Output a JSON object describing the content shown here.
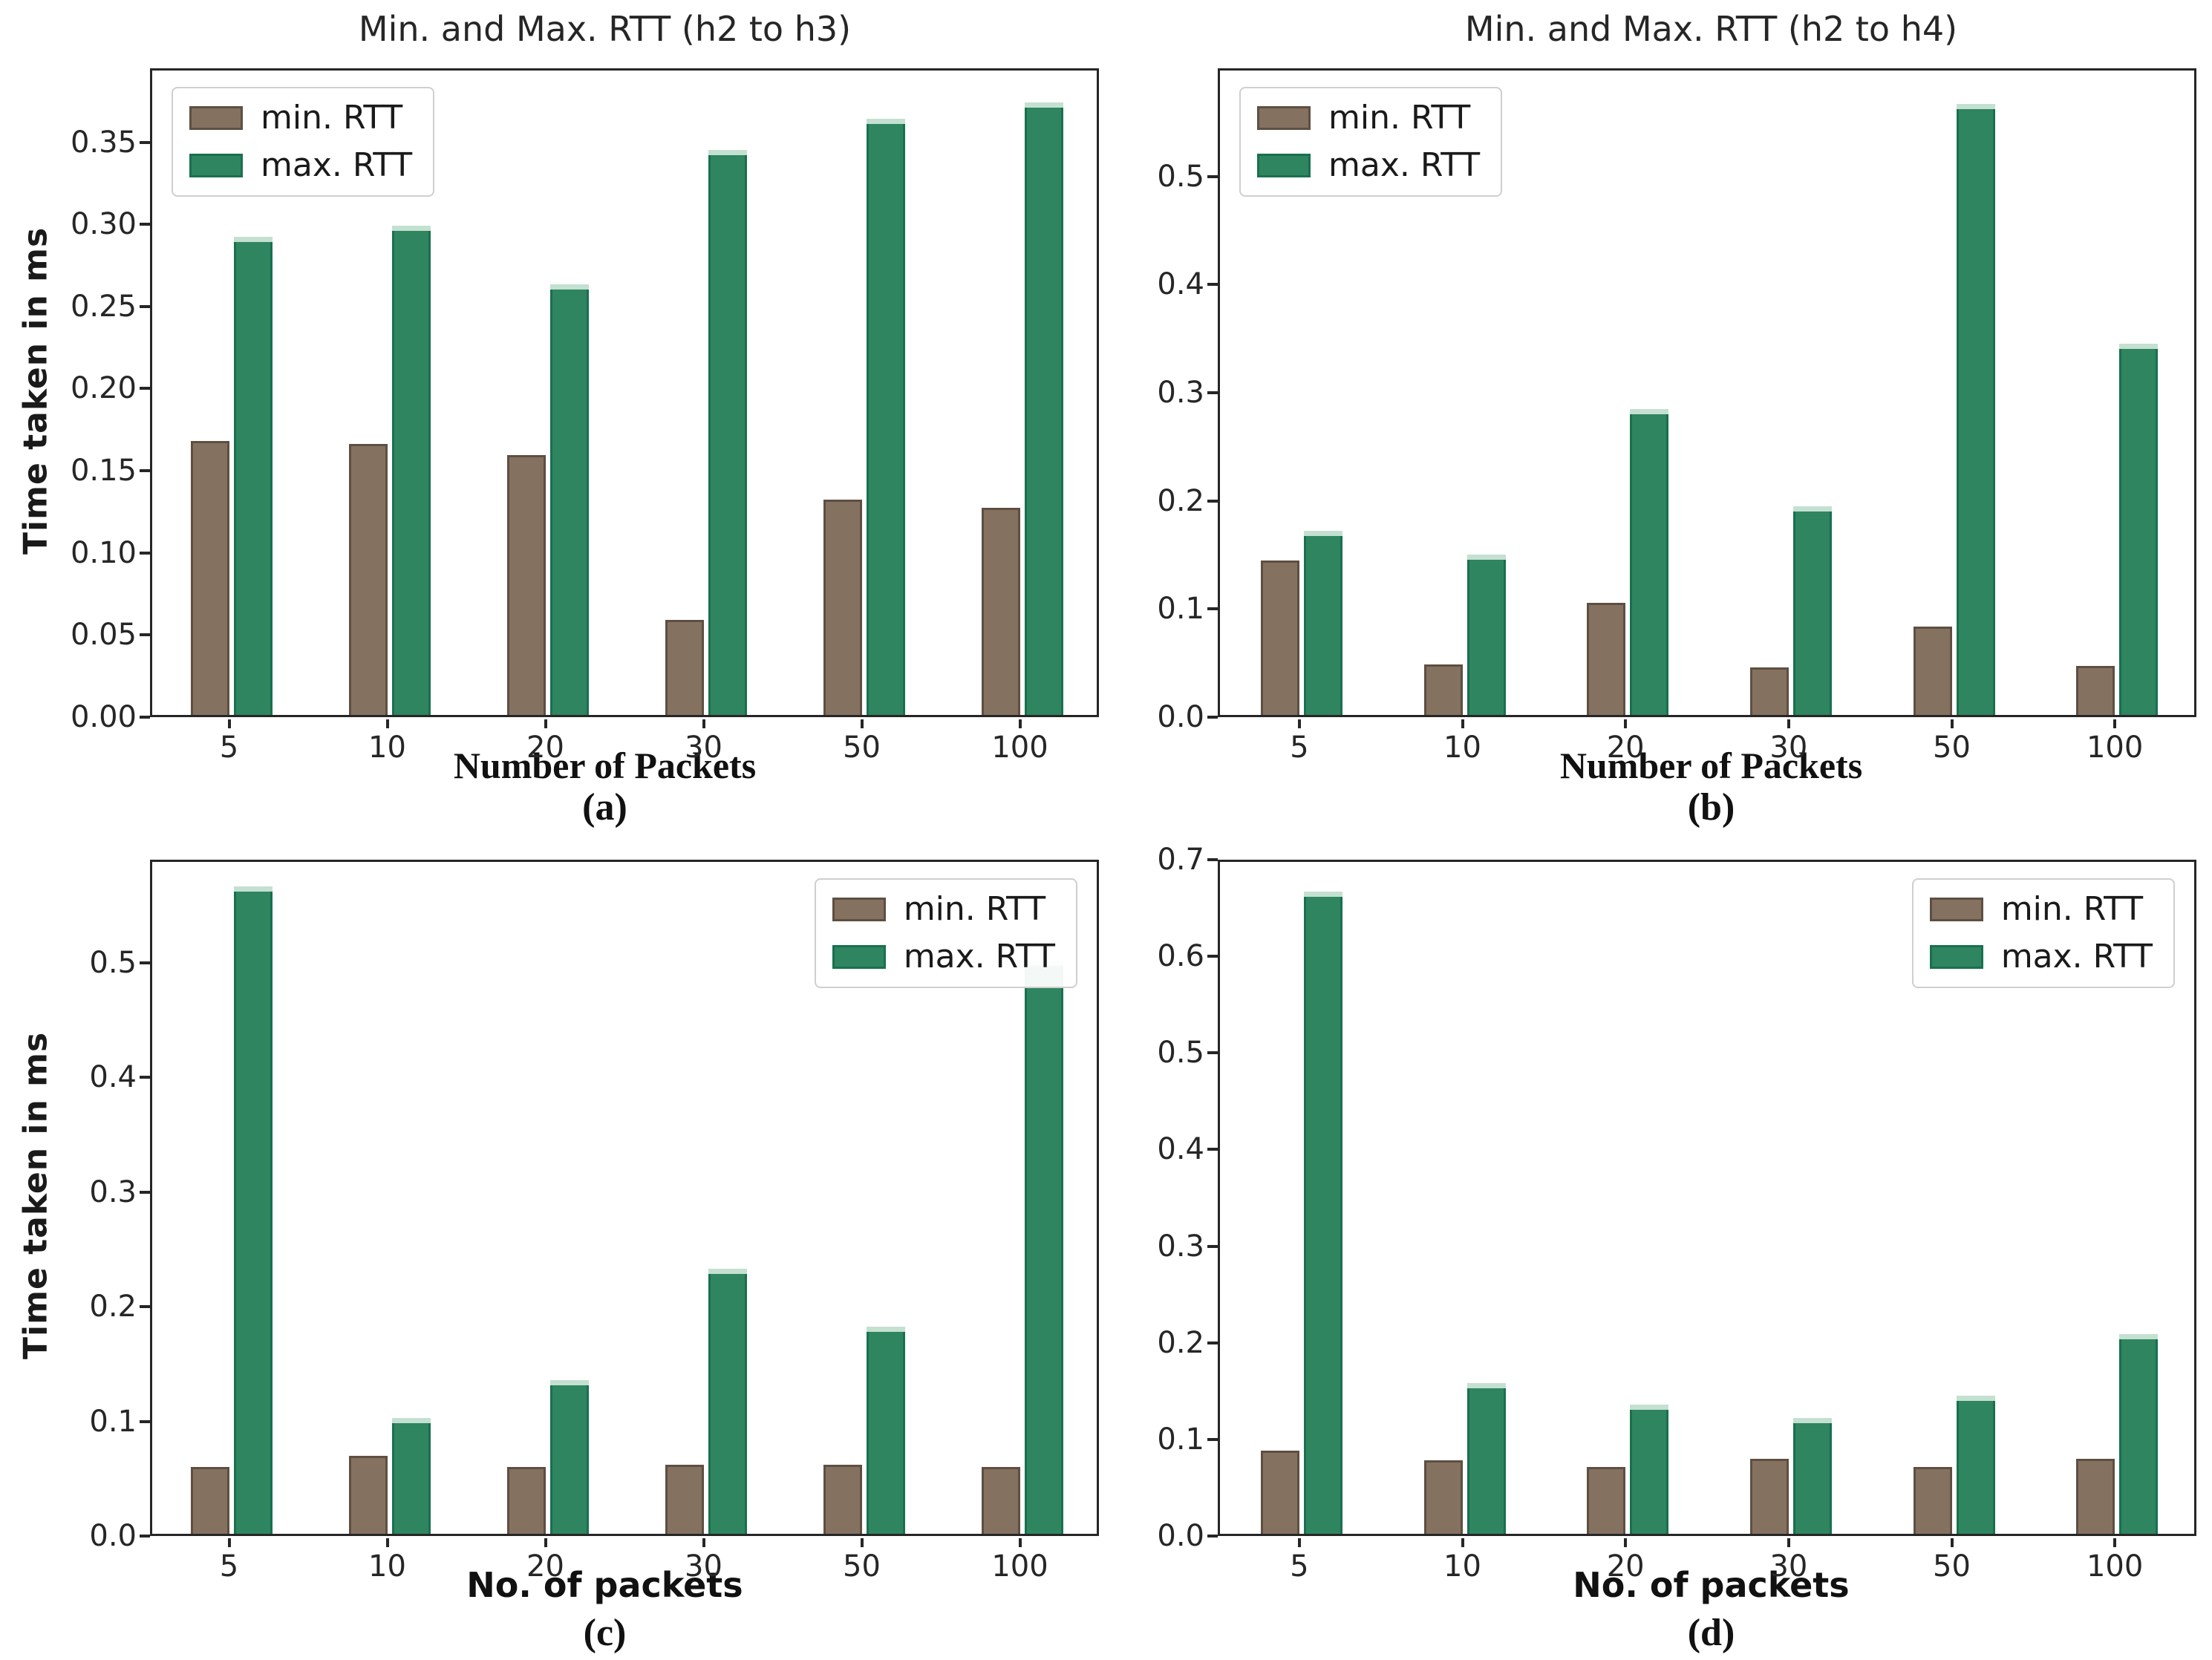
{
  "figure": {
    "background": "#ffffff",
    "description_visible_panels": 4
  },
  "colors": {
    "min_rtt_bar": "#857160",
    "min_rtt_edge": "#5e4f42",
    "max_rtt_bar": "#2e8560",
    "max_rtt_edge": "#19704f",
    "max_rtt_top_highlight": "#c4e0d1",
    "axis": "#262626",
    "text": "#1a1a1a"
  },
  "chart_data": [
    {
      "id": "a",
      "type": "bar",
      "title": "Min. and Max. RTT (h2 to h3)",
      "xlabel": "Number of Packets",
      "ylabel": "Time taken in ms",
      "caption": "(a)",
      "categories": [
        "5",
        "10",
        "20",
        "30",
        "50",
        "100"
      ],
      "series": [
        {
          "name": "min. RTT",
          "values": [
            0.167,
            0.165,
            0.158,
            0.058,
            0.131,
            0.126
          ]
        },
        {
          "name": "max. RTT",
          "values": [
            0.291,
            0.298,
            0.262,
            0.344,
            0.363,
            0.373
          ]
        }
      ],
      "yticks": [
        0.0,
        0.05,
        0.1,
        0.15,
        0.2,
        0.25,
        0.3,
        0.35
      ],
      "ytick_labels": [
        "0.00",
        "0.05",
        "0.10",
        "0.15",
        "0.20",
        "0.25",
        "0.30",
        "0.35"
      ],
      "ylim": [
        0,
        0.395
      ],
      "grid": false,
      "legend_position": "upper-left",
      "legend": [
        "min. RTT",
        "max. RTT"
      ]
    },
    {
      "id": "b",
      "type": "bar",
      "title": "Min. and Max. RTT (h2 to h4)",
      "xlabel": "Number of Packets",
      "ylabel": "",
      "caption": "(b)",
      "categories": [
        "5",
        "10",
        "20",
        "30",
        "50",
        "100"
      ],
      "series": [
        {
          "name": "min. RTT",
          "values": [
            0.143,
            0.047,
            0.104,
            0.044,
            0.082,
            0.045
          ]
        },
        {
          "name": "max. RTT",
          "values": [
            0.17,
            0.148,
            0.283,
            0.193,
            0.565,
            0.343
          ]
        }
      ],
      "yticks": [
        0.0,
        0.1,
        0.2,
        0.3,
        0.4,
        0.5
      ],
      "ytick_labels": [
        "0.0",
        "0.1",
        "0.2",
        "0.3",
        "0.4",
        "0.5"
      ],
      "ylim": [
        0,
        0.6
      ],
      "grid": false,
      "legend_position": "upper-left",
      "legend": [
        "min. RTT",
        "max. RTT"
      ]
    },
    {
      "id": "c",
      "type": "bar",
      "title": "",
      "xlabel": "No. of packets",
      "ylabel": "Time taken in ms",
      "caption": "(c)",
      "categories": [
        "5",
        "10",
        "20",
        "30",
        "50",
        "100"
      ],
      "series": [
        {
          "name": "min. RTT",
          "values": [
            0.058,
            0.068,
            0.058,
            0.06,
            0.06,
            0.058
          ]
        },
        {
          "name": "max. RTT",
          "values": [
            0.565,
            0.101,
            0.134,
            0.231,
            0.181,
            0.5
          ]
        }
      ],
      "yticks": [
        0.0,
        0.1,
        0.2,
        0.3,
        0.4,
        0.5
      ],
      "ytick_labels": [
        "0.0",
        "0.1",
        "0.2",
        "0.3",
        "0.4",
        "0.5"
      ],
      "ylim": [
        0,
        0.59
      ],
      "grid": false,
      "legend_position": "upper-right",
      "legend": [
        "min. RTT",
        "max. RTT"
      ]
    },
    {
      "id": "d",
      "type": "bar",
      "title": "",
      "xlabel": "No. of packets",
      "ylabel": "",
      "caption": "(d)",
      "categories": [
        "5",
        "10",
        "20",
        "30",
        "50",
        "100"
      ],
      "series": [
        {
          "name": "min. RTT",
          "values": [
            0.086,
            0.076,
            0.069,
            0.078,
            0.069,
            0.078
          ]
        },
        {
          "name": "max. RTT",
          "values": [
            0.665,
            0.156,
            0.134,
            0.12,
            0.143,
            0.207
          ]
        }
      ],
      "yticks": [
        0.0,
        0.1,
        0.2,
        0.3,
        0.4,
        0.5,
        0.6,
        0.7
      ],
      "ytick_labels": [
        "0.0",
        "0.1",
        "0.2",
        "0.3",
        "0.4",
        "0.5",
        "0.6",
        "0.7"
      ],
      "ylim": [
        0,
        0.7
      ],
      "grid": false,
      "legend_position": "upper-right",
      "legend": [
        "min. RTT",
        "max. RTT"
      ]
    }
  ]
}
